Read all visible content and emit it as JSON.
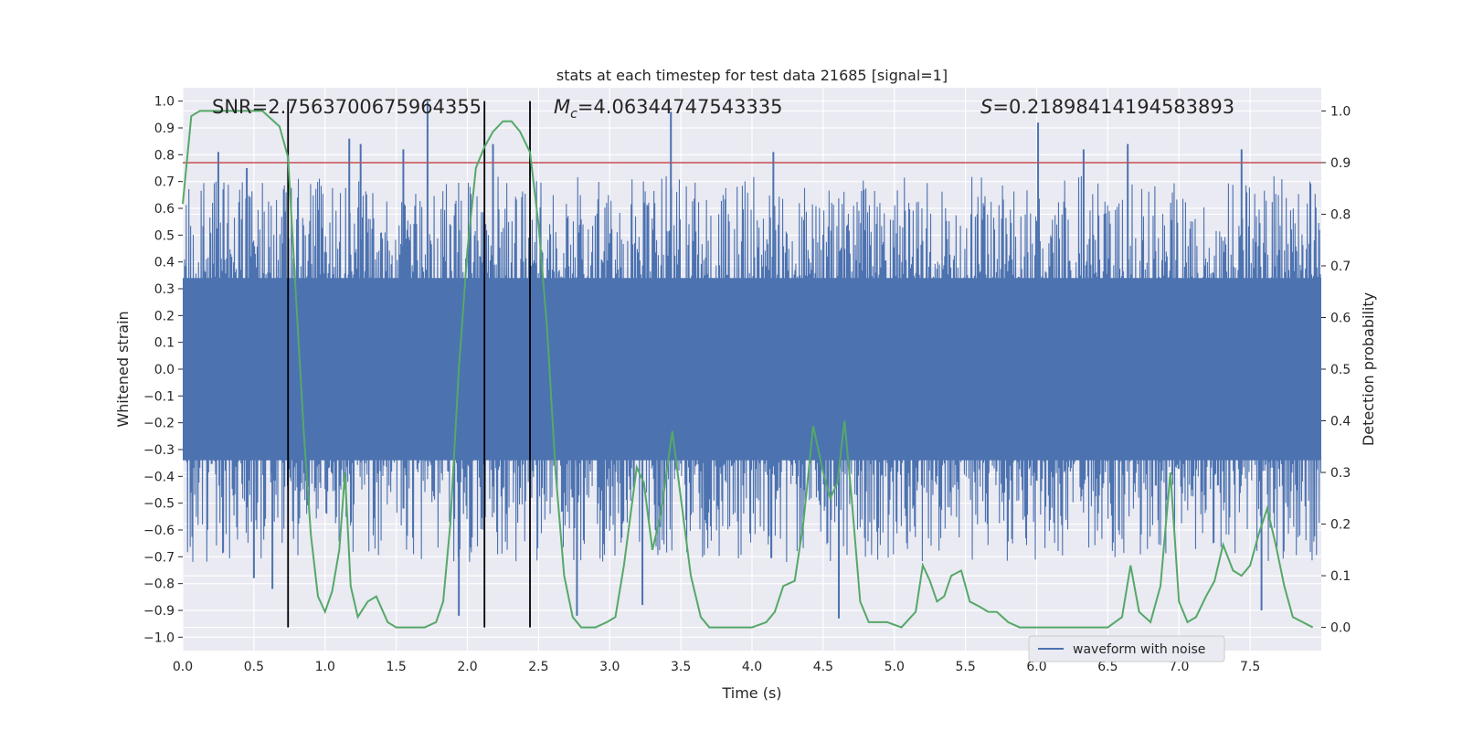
{
  "chart_data": {
    "type": "line",
    "title": "stats at each timestep for test data 21685 [signal=1]",
    "xlabel": "Time (s)",
    "ylabel": "Whitened strain",
    "ylabel_right": "Detection probability",
    "xlim": [
      0.0,
      8.0
    ],
    "ylim": [
      -1.05,
      1.05
    ],
    "ylim_right": [
      -0.045,
      1.045
    ],
    "x_ticks": [
      "0.0",
      "0.5",
      "1.0",
      "1.5",
      "2.0",
      "2.5",
      "3.0",
      "3.5",
      "4.0",
      "4.5",
      "5.0",
      "5.5",
      "6.0",
      "6.5",
      "7.0",
      "7.5"
    ],
    "y_ticks": [
      "1.0",
      "0.9",
      "0.8",
      "0.7",
      "0.6",
      "0.5",
      "0.4",
      "0.3",
      "0.2",
      "0.1",
      "0.0",
      "−0.1",
      "−0.2",
      "−0.3",
      "−0.4",
      "−0.5",
      "−0.6",
      "−0.7",
      "−0.8",
      "−0.9",
      "−1.0"
    ],
    "y_ticks_right": [
      "1.0",
      "0.9",
      "0.8",
      "0.7",
      "0.6",
      "0.5",
      "0.4",
      "0.3",
      "0.2",
      "0.1",
      "0.0"
    ],
    "grid": true,
    "legend": {
      "placement": "lower-right",
      "entries": [
        "waveform with noise"
      ]
    },
    "annotations": {
      "snr": "SNR=2.7563700675964355",
      "mc_symbol": "M",
      "mc_sub": "c",
      "mc_value": "=4.06344747543335",
      "s_symbol": "S",
      "s_value": "=0.21898414194583893"
    },
    "threshold": {
      "value_right": 0.9,
      "color": "#c44e52"
    },
    "vertical_lines": [
      0.74,
      2.12,
      2.44
    ],
    "colors": {
      "waveform": "#4c72b0",
      "probability": "#55a868",
      "vlines": "#000000",
      "background": "#eaeaf2"
    },
    "series": [
      {
        "name": "waveform with noise",
        "axis": "left",
        "note_amplitude": "dense noise, core band about ±0.35, peaks between about −0.93 and 1.0",
        "peaks": [
          {
            "x": 0.25,
            "y": 0.81
          },
          {
            "x": 0.45,
            "y": 0.75
          },
          {
            "x": 1.17,
            "y": 0.86
          },
          {
            "x": 1.25,
            "y": 0.84
          },
          {
            "x": 1.55,
            "y": 0.82
          },
          {
            "x": 1.72,
            "y": 1.0
          },
          {
            "x": 2.18,
            "y": 0.84
          },
          {
            "x": 3.43,
            "y": 0.96
          },
          {
            "x": 4.15,
            "y": 0.81
          },
          {
            "x": 6.01,
            "y": 0.92
          },
          {
            "x": 6.33,
            "y": 0.82
          },
          {
            "x": 6.64,
            "y": 0.84
          },
          {
            "x": 7.44,
            "y": 0.82
          },
          {
            "x": 0.5,
            "y": -0.78
          },
          {
            "x": 0.63,
            "y": -0.82
          },
          {
            "x": 1.94,
            "y": -0.92
          },
          {
            "x": 2.77,
            "y": -0.92
          },
          {
            "x": 3.23,
            "y": -0.88
          },
          {
            "x": 4.61,
            "y": -0.93
          },
          {
            "x": 7.58,
            "y": -0.9
          }
        ]
      },
      {
        "name": "",
        "axis": "right",
        "x": [
          0.0,
          0.06,
          0.12,
          0.2,
          0.3,
          0.4,
          0.5,
          0.56,
          0.6,
          0.68,
          0.74,
          0.8,
          0.85,
          0.9,
          0.95,
          1.0,
          1.05,
          1.1,
          1.14,
          1.18,
          1.23,
          1.3,
          1.36,
          1.44,
          1.5,
          1.6,
          1.7,
          1.78,
          1.83,
          1.88,
          1.94,
          2.0,
          2.06,
          2.12,
          2.18,
          2.25,
          2.31,
          2.37,
          2.44,
          2.5,
          2.56,
          2.62,
          2.68,
          2.74,
          2.8,
          2.9,
          2.98,
          3.04,
          3.1,
          3.19,
          3.24,
          3.3,
          3.36,
          3.44,
          3.5,
          3.57,
          3.64,
          3.7,
          3.8,
          4.0,
          4.1,
          4.16,
          4.22,
          4.3,
          4.36,
          4.43,
          4.5,
          4.55,
          4.6,
          4.65,
          4.7,
          4.76,
          4.82,
          4.88,
          4.95,
          5.05,
          5.15,
          5.2,
          5.25,
          5.3,
          5.35,
          5.4,
          5.47,
          5.53,
          5.6,
          5.66,
          5.72,
          5.8,
          5.88,
          5.95,
          6.1,
          6.2,
          6.35,
          6.5,
          6.6,
          6.66,
          6.72,
          6.8,
          6.87,
          6.94,
          7.0,
          7.06,
          7.12,
          7.19,
          7.25,
          7.31,
          7.38,
          7.44,
          7.5,
          7.56,
          7.62,
          7.68,
          7.74,
          7.8,
          7.87,
          7.94
        ],
        "values": [
          0.82,
          0.99,
          1.0,
          1.0,
          1.0,
          1.0,
          1.0,
          1.0,
          0.99,
          0.97,
          0.91,
          0.62,
          0.38,
          0.18,
          0.06,
          0.03,
          0.07,
          0.15,
          0.3,
          0.08,
          0.02,
          0.05,
          0.06,
          0.01,
          0.0,
          0.0,
          0.0,
          0.01,
          0.05,
          0.2,
          0.5,
          0.73,
          0.89,
          0.93,
          0.96,
          0.98,
          0.98,
          0.96,
          0.92,
          0.78,
          0.58,
          0.3,
          0.1,
          0.02,
          0.0,
          0.0,
          0.01,
          0.02,
          0.12,
          0.31,
          0.28,
          0.15,
          0.22,
          0.38,
          0.25,
          0.1,
          0.02,
          0.0,
          0.0,
          0.0,
          0.01,
          0.03,
          0.08,
          0.09,
          0.2,
          0.39,
          0.3,
          0.25,
          0.28,
          0.4,
          0.25,
          0.05,
          0.01,
          0.01,
          0.01,
          0.0,
          0.03,
          0.12,
          0.09,
          0.05,
          0.06,
          0.1,
          0.11,
          0.05,
          0.04,
          0.03,
          0.03,
          0.01,
          0.0,
          0.0,
          0.0,
          0.0,
          0.0,
          0.0,
          0.02,
          0.12,
          0.03,
          0.01,
          0.08,
          0.3,
          0.05,
          0.01,
          0.02,
          0.06,
          0.09,
          0.16,
          0.11,
          0.1,
          0.12,
          0.18,
          0.23,
          0.16,
          0.08,
          0.02,
          0.01,
          0.0
        ]
      }
    ]
  }
}
